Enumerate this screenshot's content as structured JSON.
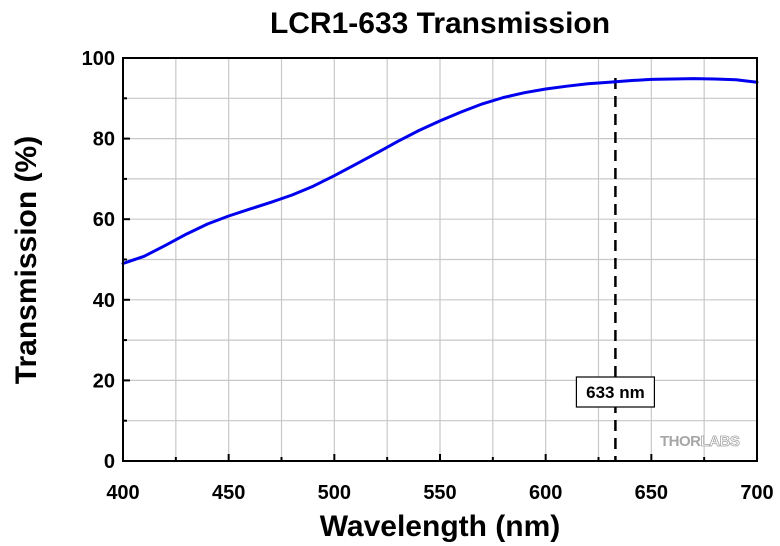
{
  "chart_data": {
    "type": "line",
    "title": "LCR1-633 Transmission",
    "xlabel": "Wavelength (nm)",
    "ylabel": "Transmission (%)",
    "xlim": [
      400,
      700
    ],
    "ylim": [
      0,
      100
    ],
    "xticks": [
      400,
      450,
      500,
      550,
      600,
      650,
      700
    ],
    "yticks": [
      0,
      20,
      40,
      60,
      80,
      100
    ],
    "grid": true,
    "legend": "none",
    "series": [
      {
        "color": "#0000ee",
        "x": [
          400,
          410,
          420,
          430,
          440,
          450,
          460,
          470,
          480,
          490,
          500,
          510,
          520,
          530,
          540,
          550,
          560,
          570,
          580,
          590,
          600,
          610,
          620,
          630,
          640,
          650,
          660,
          670,
          680,
          690,
          700
        ],
        "y": [
          49.0,
          50.8,
          53.5,
          56.3,
          58.8,
          60.8,
          62.5,
          64.2,
          66.0,
          68.2,
          70.8,
          73.6,
          76.4,
          79.3,
          82.0,
          84.4,
          86.6,
          88.6,
          90.2,
          91.4,
          92.3,
          93.0,
          93.6,
          94.0,
          94.4,
          94.7,
          94.8,
          94.9,
          94.8,
          94.6,
          94.0
        ]
      }
    ],
    "annotations": [
      {
        "type": "vline",
        "x": 633,
        "style": "dashed",
        "label": "633 nm"
      }
    ],
    "watermark": {
      "part1": "THOR",
      "part2": "LABS"
    }
  }
}
